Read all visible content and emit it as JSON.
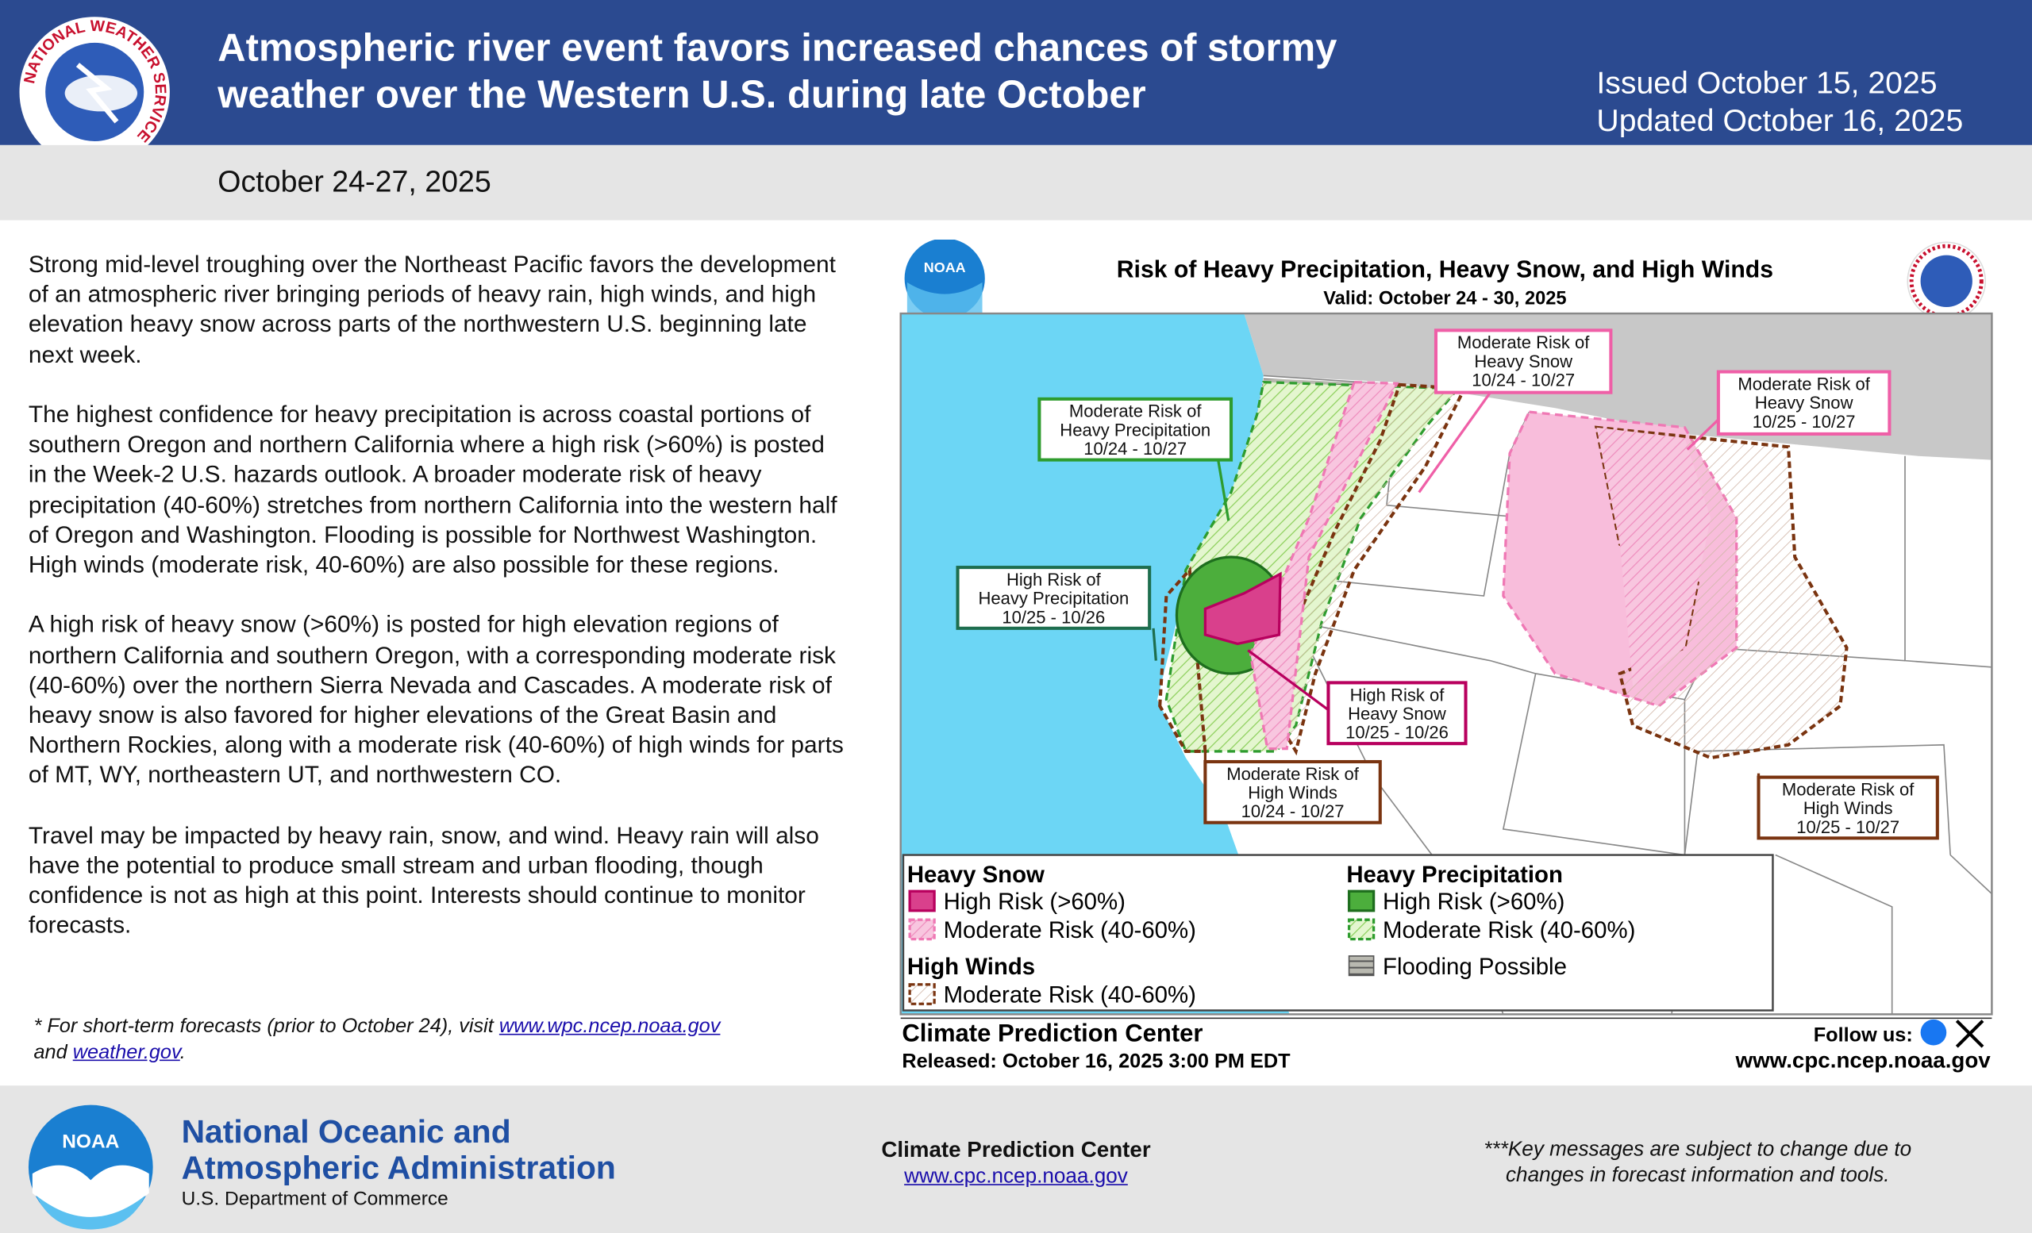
{
  "header": {
    "logo_text": "NATIONAL WEATHER SERVICE",
    "title_lines": [
      "Atmospheric river event favors increased chances of stormy",
      "weather over the Western U.S. during late October"
    ],
    "issued": "Issued October 15, 2025",
    "updated": "Updated October 16, 2025"
  },
  "subheader": {
    "dates": "October 24-27, 2025"
  },
  "body": {
    "paragraphs": [
      "Strong mid-level troughing over the Northeast Pacific favors the development of an atmospheric river bringing periods of heavy rain, high winds, and high elevation heavy snow across parts of the northwestern U.S. beginning late next week.",
      "The highest confidence for heavy precipitation is across coastal portions of southern Oregon and northern California where a high risk (>60%) is posted in the Week-2 U.S. hazards outlook. A broader moderate risk of heavy precipitation (40-60%) stretches from northern California into the western half of Oregon and Washington. Flooding is possible for Northwest Washington. High winds (moderate risk, 40-60%) are also possible for these regions.",
      "A high risk of heavy snow (>60%) is posted for high elevation regions of northern California and southern Oregon, with a corresponding moderate risk (40-60%) over the northern Sierra Nevada and Cascades. A moderate risk of heavy snow is also favored for higher elevations of the Great Basin and Northern Rockies, along with a moderate risk (40-60%) of high winds for parts of MT, WY, northeastern UT, and northwestern CO.",
      "Travel may be impacted by heavy rain, snow, and wind. Heavy rain will also have the potential to produce small stream and urban flooding, though confidence is not as high at this point. Interests should continue to monitor forecasts."
    ],
    "footnote": {
      "prefix": "* For short-term forecasts (prior to October 24), visit",
      "link1": "www.wpc.ncep.noaa.gov",
      "middle": "and",
      "link2": "weather.gov",
      "suffix": "."
    }
  },
  "map": {
    "logo": "NOAA",
    "title": "Risk of Heavy Precipitation, Heavy Snow, and High Winds",
    "valid": "Valid: October 24 - 30, 2025",
    "labels": [
      {
        "lines": [
          "Moderate Risk of",
          "Heavy Snow",
          "10/24 - 10/27"
        ]
      },
      {
        "lines": [
          "Moderate Risk of",
          "Heavy Snow",
          "10/25 - 10/27"
        ]
      },
      {
        "lines": [
          "Moderate Risk of",
          "Heavy Precipitation",
          "10/24 - 10/27"
        ]
      },
      {
        "lines": [
          "High Risk of",
          "Heavy Precipitation",
          "10/25 - 10/26"
        ]
      },
      {
        "lines": [
          "High Risk of",
          "Heavy Snow",
          "10/25 - 10/26"
        ]
      },
      {
        "lines": [
          "Moderate Risk of",
          "High Winds",
          "10/24 - 10/27"
        ]
      },
      {
        "lines": [
          "Moderate Risk of",
          "High Winds",
          "10/25 - 10/27"
        ]
      }
    ],
    "legend": {
      "snow_title": "Heavy Snow",
      "snow_high": "High Risk (>60%)",
      "snow_moderate": "Moderate Risk (40-60%)",
      "winds_title": "High Winds",
      "winds_moderate": "Moderate Risk (40-60%)",
      "precip_title": "Heavy Precipitation",
      "precip_high": "High Risk (>60%)",
      "precip_moderate": "Moderate Risk (40-60%)",
      "flooding": "Flooding Possible"
    },
    "footer": {
      "center": "Climate Prediction Center",
      "follow": "Follow us:",
      "released": "Released: October 16, 2025 3:00 PM EDT",
      "url": "www.cpc.ncep.noaa.gov"
    }
  },
  "footer": {
    "logo": "NOAA",
    "agency_lines": [
      "National Oceanic and",
      "Atmospheric Administration"
    ],
    "department": "U.S. Department of Commerce",
    "center": "Climate Prediction Center",
    "center_url": "www.cpc.ncep.noaa.gov",
    "note_lines": [
      "***Key messages are subject to change due to",
      "changes in forecast information and tools."
    ]
  }
}
